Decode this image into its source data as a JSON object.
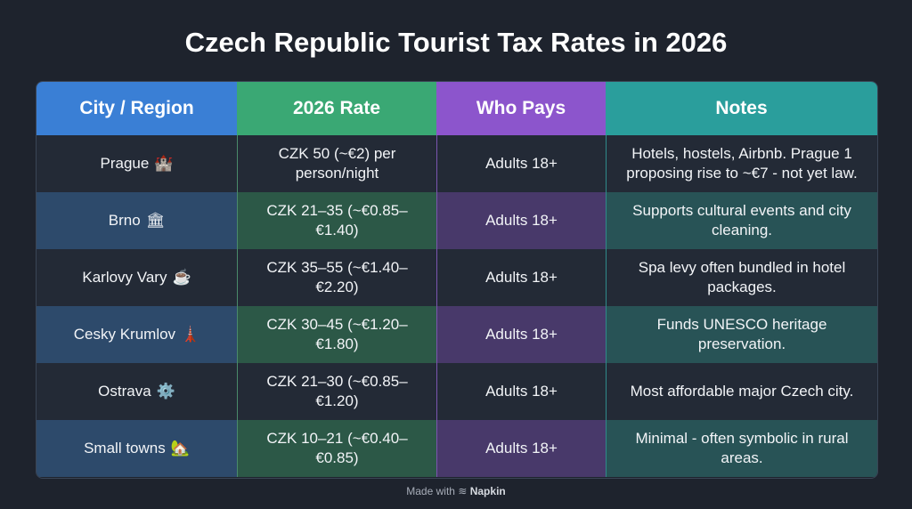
{
  "title": "Czech Republic Tourist Tax Rates in 2026",
  "colors": {
    "background": "#1e232d",
    "city": "#3a7fd5",
    "rate": "#3aa874",
    "who": "#8c55cc",
    "notes": "#2a9e9c"
  },
  "columns": [
    "City / Region",
    "2026 Rate",
    "Who Pays",
    "Notes"
  ],
  "rows": [
    {
      "city": "Prague",
      "icon": "🏰",
      "icon_name": "castle-icon",
      "rate": "CZK 50 (~€2) per person/night",
      "who": "Adults 18+",
      "notes": "Hotels, hostels, Airbnb. Prague 1 proposing rise to ~€7 - not yet law."
    },
    {
      "city": "Brno",
      "icon": "🏛",
      "icon_name": "building-icon",
      "rate": "CZK 21–35 (~€0.85–€1.40)",
      "who": "Adults 18+",
      "notes": "Supports cultural events and city cleaning."
    },
    {
      "city": "Karlovy Vary",
      "icon": "☕",
      "icon_name": "coffee-cup-icon",
      "rate": "CZK 35–55 (~€1.40–€2.20)",
      "who": "Adults 18+",
      "notes": "Spa levy often bundled in hotel packages."
    },
    {
      "city": "Cesky Krumlov",
      "icon": "🗼",
      "icon_name": "tower-icon",
      "rate": "CZK 30–45 (~€1.20–€1.80)",
      "who": "Adults 18+",
      "notes": "Funds UNESCO heritage preservation."
    },
    {
      "city": "Ostrava",
      "icon": "⚙️",
      "icon_name": "gear-icon",
      "rate": "CZK 21–30 (~€0.85–€1.20)",
      "who": "Adults 18+",
      "notes": "Most affordable major Czech city."
    },
    {
      "city": "Small towns",
      "icon": "🏡",
      "icon_name": "house-icon",
      "rate": "CZK 10–21 (~€0.40–€0.85)",
      "who": "Adults 18+",
      "notes": "Minimal - often symbolic in rural areas."
    }
  ],
  "footer": {
    "prefix": "Made with",
    "brand": "Napkin",
    "icon_name": "napkin-logo-icon"
  }
}
